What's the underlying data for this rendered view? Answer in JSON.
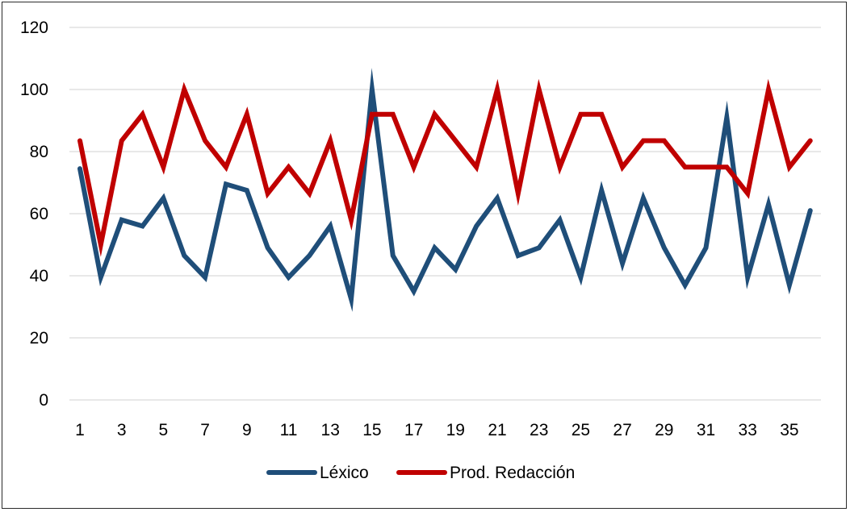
{
  "chart_data": {
    "type": "line",
    "title": "",
    "xlabel": "",
    "ylabel": "",
    "x": [
      1,
      2,
      3,
      4,
      5,
      6,
      7,
      8,
      9,
      10,
      11,
      12,
      13,
      14,
      15,
      16,
      17,
      18,
      19,
      20,
      21,
      22,
      23,
      24,
      25,
      26,
      27,
      28,
      29,
      30,
      31,
      32,
      33,
      34,
      35,
      36
    ],
    "x_tick_labels": [
      "1",
      "3",
      "5",
      "7",
      "9",
      "11",
      "13",
      "15",
      "17",
      "19",
      "21",
      "23",
      "25",
      "27",
      "29",
      "31",
      "33",
      "35"
    ],
    "ylim": [
      0,
      120
    ],
    "y_ticks": [
      "0",
      "20",
      "40",
      "60",
      "80",
      "100",
      "120"
    ],
    "grid": "horizontal",
    "legend_position": "bottom",
    "series": [
      {
        "name": "Léxico",
        "color": "#1f4e79",
        "values": [
          74.5,
          39.5,
          58,
          56,
          65,
          46.5,
          39.5,
          69.5,
          67.5,
          49,
          39.5,
          46.5,
          56,
          32.5,
          100,
          46.5,
          35,
          49,
          42,
          56,
          65,
          46.5,
          49,
          58,
          39.5,
          67.5,
          44,
          65,
          49,
          37,
          49,
          91,
          39.5,
          63,
          37,
          61
        ]
      },
      {
        "name": "Prod. Redacción",
        "color": "#c00000",
        "values": [
          83.5,
          50,
          83.5,
          92,
          75,
          100,
          83.5,
          75,
          92,
          66.5,
          75,
          66.5,
          83.5,
          58,
          92,
          92,
          75,
          92,
          83.5,
          75,
          100,
          66.5,
          100,
          75,
          92,
          92,
          75,
          83.5,
          83.5,
          75,
          75,
          75,
          66.5,
          100,
          75,
          83.5
        ]
      }
    ]
  }
}
